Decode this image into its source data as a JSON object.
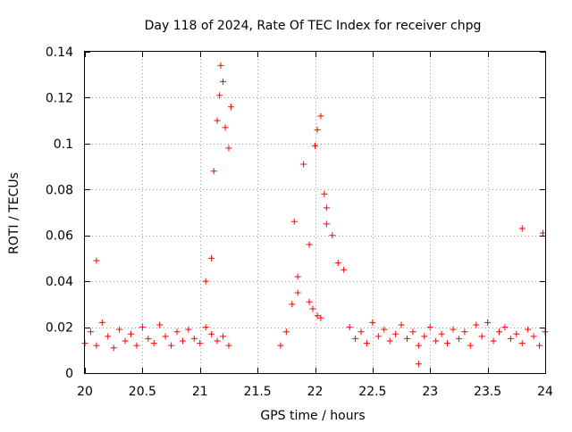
{
  "chart_data": {
    "type": "scatter",
    "title": "Day 118 of 2024, Rate Of TEC Index for receiver chpg",
    "xlabel": "GPS time / hours",
    "ylabel": "ROTI / TECUs",
    "xlim": [
      20,
      24
    ],
    "ylim": [
      0,
      0.14
    ],
    "x_ticks": [
      20,
      20.5,
      21,
      21.5,
      22,
      22.5,
      23,
      23.5,
      24
    ],
    "x_tick_labels": [
      "20",
      "20.5",
      "21",
      "21.5",
      "22",
      "22.5",
      "23",
      "23.5",
      "24"
    ],
    "y_ticks": [
      0,
      0.02,
      0.04,
      0.06,
      0.08,
      0.1,
      0.12,
      0.14
    ],
    "y_tick_labels": [
      "0",
      "0.02",
      "0.04",
      "0.06",
      "0.08",
      "0.1",
      "0.12",
      "0.14"
    ],
    "grid": true,
    "marker": "+",
    "color": "#ff0000",
    "series": [
      {
        "name": "ROTI",
        "x": [
          20.0,
          20.05,
          20.1,
          20.15,
          20.2,
          20.25,
          20.3,
          20.35,
          20.4,
          20.45,
          20.5,
          20.55,
          20.6,
          20.65,
          20.7,
          20.75,
          20.8,
          20.85,
          20.9,
          20.95,
          21.0,
          21.05,
          21.1,
          21.15,
          21.2,
          21.25,
          20.1,
          21.12,
          21.15,
          21.17,
          21.18,
          21.2,
          21.22,
          21.25,
          21.27,
          21.1,
          21.05,
          21.7,
          21.75,
          21.8,
          21.82,
          21.85,
          21.9,
          21.95,
          22.0,
          22.02,
          22.05,
          22.08,
          22.1,
          22.15,
          22.2,
          22.25,
          22.3,
          22.35,
          22.4,
          22.45,
          22.5,
          22.55,
          22.6,
          22.65,
          22.7,
          22.75,
          22.8,
          22.85,
          22.9,
          22.95,
          23.0,
          23.05,
          23.1,
          23.15,
          23.2,
          23.25,
          23.3,
          23.35,
          23.4,
          23.45,
          23.5,
          23.55,
          23.6,
          23.65,
          23.7,
          23.75,
          23.8,
          23.85,
          23.9,
          23.95,
          24.0,
          23.98,
          23.8,
          22.9,
          21.95,
          21.98,
          22.02,
          22.05,
          22.1,
          21.85
        ],
        "y": [
          0.013,
          0.018,
          0.012,
          0.022,
          0.016,
          0.011,
          0.019,
          0.014,
          0.017,
          0.012,
          0.02,
          0.015,
          0.013,
          0.021,
          0.016,
          0.012,
          0.018,
          0.014,
          0.019,
          0.015,
          0.013,
          0.02,
          0.017,
          0.014,
          0.016,
          0.012,
          0.049,
          0.088,
          0.11,
          0.121,
          0.134,
          0.127,
          0.107,
          0.098,
          0.116,
          0.05,
          0.04,
          0.012,
          0.018,
          0.03,
          0.066,
          0.042,
          0.091,
          0.056,
          0.099,
          0.106,
          0.112,
          0.078,
          0.072,
          0.06,
          0.048,
          0.045,
          0.02,
          0.015,
          0.018,
          0.013,
          0.022,
          0.016,
          0.019,
          0.014,
          0.017,
          0.021,
          0.015,
          0.018,
          0.012,
          0.016,
          0.02,
          0.014,
          0.017,
          0.013,
          0.019,
          0.015,
          0.018,
          0.012,
          0.021,
          0.016,
          0.022,
          0.014,
          0.018,
          0.02,
          0.015,
          0.017,
          0.013,
          0.019,
          0.016,
          0.012,
          0.018,
          0.061,
          0.063,
          0.004,
          0.031,
          0.028,
          0.025,
          0.024,
          0.065,
          0.035
        ]
      }
    ]
  }
}
